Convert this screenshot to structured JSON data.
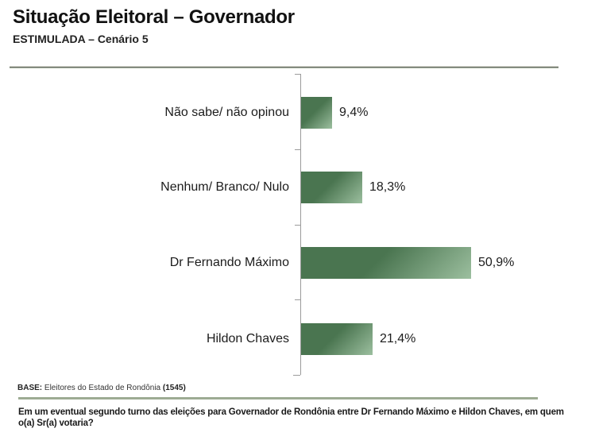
{
  "header": {
    "title": "Situação Eleitoral – Governador",
    "subtitle": "ESTIMULADA – Cenário 5"
  },
  "chart_data": {
    "type": "bar",
    "orientation": "horizontal",
    "title": "Situação Eleitoral – Governador",
    "subtitle": "ESTIMULADA – Cenário 5",
    "categories": [
      "Não sabe/ não opinou",
      "Nenhum/ Branco/ Nulo",
      "Dr Fernando Máximo",
      "Hildon Chaves"
    ],
    "values": [
      9.4,
      18.3,
      50.9,
      21.4
    ],
    "value_labels": [
      "9,4%",
      "18,3%",
      "50,9%",
      "21,4%"
    ],
    "xlim": [
      0,
      60
    ],
    "grid": false,
    "legend": false,
    "bar_color": "#4a7550",
    "bar_gradient_light": "#9cbf9f"
  },
  "colors": {
    "bar_green": "#4a7550",
    "bar_gradient_light": "#9cbf9f",
    "rule_sage": "#9dab93",
    "axis_gray": "#9b9b9b"
  },
  "footer": {
    "base_label": "BASE:",
    "base_text": " Eleitores do Estado de Rondônia ",
    "base_count": "(1545)",
    "question": "Em um eventual segundo turno das eleições para Governador de Rondônia entre Dr Fernando Máximo e Hildon Chaves, em quem o(a) Sr(a) votaria?"
  }
}
